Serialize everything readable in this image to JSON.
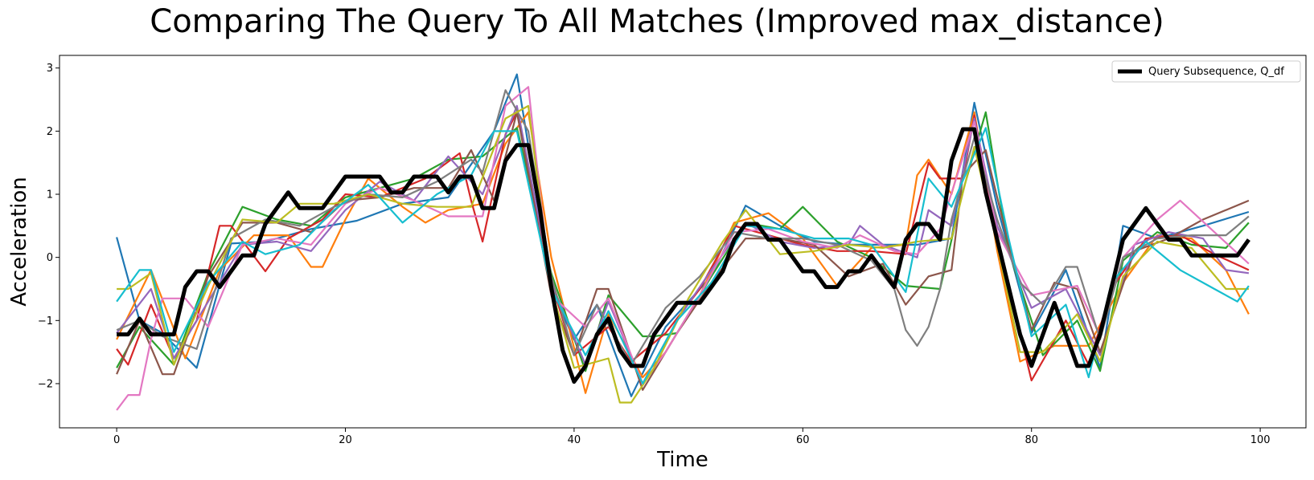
{
  "chart_data": {
    "type": "line",
    "title": "Comparing The Query To All Matches (Improved max_distance)",
    "xlabel": "Time",
    "ylabel": "Acceleration",
    "xlim": [
      -5,
      104
    ],
    "ylim": [
      -2.7,
      3.2
    ],
    "xticks": [
      0,
      20,
      40,
      60,
      80,
      100
    ],
    "yticks": [
      -2,
      -1,
      0,
      1,
      2,
      3
    ],
    "xtick_labels": [
      "0",
      "20",
      "40",
      "60",
      "80",
      "100"
    ],
    "ytick_labels": [
      "−2",
      "−1",
      "0",
      "1",
      "2",
      "3"
    ],
    "grid": false,
    "legend": {
      "position": "top-right",
      "entries": [
        {
          "label": "Query Subsequence, Q_df",
          "color": "#000000"
        }
      ]
    },
    "query": {
      "name": "Query Subsequence, Q_df",
      "color": "#000000",
      "x": [
        0,
        1,
        2,
        3,
        4,
        5,
        6,
        7,
        8,
        9,
        10,
        11,
        12,
        13,
        14,
        15,
        16,
        17,
        18,
        19,
        20,
        21,
        22,
        23,
        24,
        25,
        26,
        27,
        28,
        29,
        30,
        31,
        32,
        33,
        34,
        35,
        36,
        37,
        38,
        39,
        40,
        41,
        42,
        43,
        44,
        45,
        46,
        47,
        48,
        49,
        50,
        51,
        52,
        53,
        54,
        55,
        56,
        57,
        58,
        59,
        60,
        61,
        62,
        63,
        64,
        65,
        66,
        67,
        68,
        69,
        70,
        71,
        72,
        73,
        74,
        75,
        76,
        77,
        78,
        79,
        80,
        81,
        82,
        83,
        84,
        85,
        86,
        87,
        88,
        89,
        90,
        91,
        92,
        93,
        94,
        95,
        96,
        97,
        98,
        99
      ],
      "y": [
        -1.22,
        -1.22,
        -0.97,
        -1.22,
        -1.22,
        -1.22,
        -0.47,
        -0.22,
        -0.22,
        -0.47,
        -0.22,
        0.03,
        0.03,
        0.53,
        0.78,
        1.03,
        0.78,
        0.78,
        0.78,
        1.03,
        1.28,
        1.28,
        1.28,
        1.28,
        1.03,
        1.03,
        1.28,
        1.28,
        1.28,
        1.03,
        1.28,
        1.28,
        0.78,
        0.78,
        1.53,
        1.78,
        1.78,
        0.78,
        -0.47,
        -1.47,
        -1.97,
        -1.72,
        -1.22,
        -0.97,
        -1.47,
        -1.72,
        -1.72,
        -1.22,
        -0.97,
        -0.72,
        -0.72,
        -0.72,
        -0.47,
        -0.22,
        0.28,
        0.53,
        0.53,
        0.28,
        0.28,
        0.03,
        -0.22,
        -0.22,
        -0.47,
        -0.47,
        -0.22,
        -0.22,
        0.03,
        -0.22,
        -0.47,
        0.28,
        0.53,
        0.53,
        0.28,
        1.53,
        2.03,
        2.03,
        1.03,
        0.28,
        -0.47,
        -1.22,
        -1.72,
        -1.22,
        -0.72,
        -1.22,
        -1.72,
        -1.72,
        -1.22,
        -0.47,
        0.28,
        0.53,
        0.78,
        0.53,
        0.28,
        0.28,
        0.03,
        0.03,
        0.03,
        0.03,
        0.03,
        0.28
      ]
    },
    "series": [
      {
        "color": "#1f77b4",
        "x": [
          0,
          2,
          4,
          7,
          10,
          13,
          17,
          21,
          25,
          29,
          33,
          35,
          38,
          40,
          42,
          45,
          48,
          52,
          55,
          58,
          61,
          64,
          67,
          70,
          73,
          75,
          77,
          80,
          83,
          86,
          88,
          91,
          95,
          99
        ],
        "y": [
          0.32,
          -1.0,
          -1.2,
          -1.75,
          0.22,
          0.25,
          0.45,
          0.58,
          0.85,
          0.95,
          2.0,
          2.9,
          -0.5,
          -1.3,
          -0.75,
          -2.2,
          -1.1,
          -0.3,
          0.82,
          0.5,
          0.25,
          0.2,
          0.2,
          0.2,
          0.3,
          2.45,
          0.8,
          -1.2,
          -0.2,
          -1.75,
          0.5,
          0.3,
          0.5,
          0.72
        ]
      },
      {
        "color": "#ff7f0e",
        "x": [
          0,
          3,
          6,
          9,
          12,
          15,
          17,
          18,
          20,
          22,
          25,
          27,
          29,
          32,
          34,
          36,
          38,
          41,
          43,
          46,
          48,
          51,
          54,
          57,
          60,
          63,
          66,
          69,
          70,
          71,
          73,
          75,
          77,
          79,
          82,
          85,
          88,
          91,
          94,
          97,
          99
        ],
        "y": [
          -1.3,
          -0.2,
          -1.6,
          -0.2,
          0.35,
          0.35,
          -0.15,
          -0.15,
          0.6,
          1.25,
          0.8,
          0.55,
          0.75,
          0.85,
          1.8,
          2.3,
          0.0,
          -2.15,
          -0.9,
          -1.9,
          -1.5,
          -0.6,
          0.55,
          0.7,
          0.3,
          -0.45,
          0.15,
          0.2,
          1.3,
          1.55,
          1.0,
          2.3,
          0.1,
          -1.65,
          -1.4,
          -1.4,
          -0.4,
          0.35,
          0.3,
          -0.2,
          -0.9
        ]
      },
      {
        "color": "#2ca02c",
        "x": [
          0,
          2,
          5,
          8,
          11,
          14,
          17,
          20,
          23,
          26,
          29,
          32,
          35,
          38,
          41,
          43,
          46,
          47,
          49,
          52,
          55,
          58,
          60,
          63,
          66,
          69,
          72,
          74,
          76,
          78,
          81,
          84,
          86,
          88,
          91,
          94,
          97,
          99
        ],
        "y": [
          -1.75,
          -1.1,
          -1.7,
          -0.25,
          0.8,
          0.6,
          0.5,
          0.95,
          1.1,
          1.25,
          1.55,
          1.6,
          2.05,
          -0.25,
          -1.8,
          -0.6,
          -1.25,
          -1.25,
          -1.2,
          -0.3,
          0.55,
          0.45,
          0.8,
          0.25,
          0.0,
          -0.45,
          -0.5,
          1.05,
          2.3,
          0.1,
          -1.55,
          -1.0,
          -1.8,
          -0.05,
          0.4,
          0.2,
          0.15,
          0.55
        ]
      },
      {
        "color": "#d62728",
        "x": [
          0,
          1,
          3,
          5,
          7,
          9,
          10,
          13,
          15,
          18,
          20,
          23,
          27,
          30,
          31,
          32,
          34,
          35,
          38,
          40,
          43,
          45,
          48,
          51,
          54,
          57,
          60,
          63,
          66,
          69,
          71,
          72,
          74,
          75,
          77,
          79,
          80,
          83,
          85,
          87,
          90,
          93,
          96,
          99
        ],
        "y": [
          -1.45,
          -1.7,
          -0.75,
          -1.6,
          -1.0,
          0.5,
          0.5,
          -0.22,
          0.3,
          0.6,
          1.0,
          0.95,
          1.25,
          1.65,
          0.9,
          0.25,
          1.95,
          2.3,
          -0.4,
          -1.55,
          -1.1,
          -1.65,
          -1.2,
          -0.5,
          0.5,
          0.35,
          0.2,
          0.1,
          0.1,
          0.05,
          1.5,
          1.25,
          1.25,
          2.25,
          0.3,
          -1.2,
          -1.95,
          -1.0,
          -1.7,
          -0.5,
          0.3,
          0.35,
          0.05,
          -0.2
        ]
      },
      {
        "color": "#9467bd",
        "x": [
          0,
          3,
          5,
          8,
          11,
          14,
          17,
          20,
          23,
          26,
          29,
          32,
          35,
          38,
          41,
          43,
          46,
          49,
          52,
          55,
          58,
          61,
          64,
          65,
          67,
          70,
          71,
          73,
          75,
          77,
          80,
          83,
          86,
          89,
          92,
          95,
          97,
          99
        ],
        "y": [
          -1.2,
          -0.5,
          -1.6,
          -0.7,
          0.2,
          0.25,
          0.1,
          0.75,
          1.2,
          0.9,
          1.6,
          1.0,
          2.4,
          -0.4,
          -1.7,
          -0.7,
          -2.0,
          -1.0,
          -0.2,
          0.55,
          0.25,
          0.15,
          0.2,
          0.5,
          0.2,
          0.0,
          0.75,
          0.5,
          2.2,
          0.5,
          -0.8,
          -0.5,
          -1.55,
          0.2,
          0.4,
          0.3,
          -0.2,
          -0.25
        ]
      },
      {
        "color": "#8c564b",
        "x": [
          0,
          2,
          4,
          5,
          8,
          11,
          14,
          17,
          20,
          23,
          26,
          29,
          31,
          33,
          35,
          38,
          40,
          42,
          43,
          46,
          49,
          52,
          55,
          58,
          61,
          64,
          67,
          69,
          71,
          73,
          74,
          76,
          78,
          80,
          82,
          84,
          86,
          89,
          92,
          95,
          99
        ],
        "y": [
          -1.85,
          -1.0,
          -1.85,
          -1.85,
          -0.3,
          0.55,
          0.55,
          0.4,
          0.9,
          0.95,
          1.1,
          1.1,
          1.7,
          0.9,
          2.3,
          -0.6,
          -1.55,
          -0.5,
          -0.5,
          -2.1,
          -1.2,
          -0.4,
          0.3,
          0.3,
          0.2,
          -0.3,
          -0.1,
          -0.75,
          -0.3,
          -0.2,
          1.3,
          1.7,
          0.2,
          -1.15,
          -0.4,
          -0.5,
          -1.5,
          0.1,
          0.3,
          0.6,
          0.9
        ]
      },
      {
        "color": "#e377c2",
        "x": [
          0,
          1,
          2,
          3,
          4,
          6,
          8,
          11,
          14,
          17,
          20,
          23,
          26,
          29,
          32,
          34,
          36,
          38,
          41,
          43,
          46,
          48,
          51,
          54,
          57,
          60,
          63,
          65,
          68,
          70,
          72,
          75,
          77,
          80,
          84,
          86,
          88,
          91,
          93,
          96,
          99
        ],
        "y": [
          -2.42,
          -2.18,
          -2.18,
          -1.3,
          -0.65,
          -0.65,
          -1.1,
          0.2,
          0.3,
          0.2,
          0.85,
          1.1,
          0.9,
          0.65,
          0.65,
          2.4,
          2.7,
          -0.6,
          -1.1,
          -0.65,
          -2.0,
          -1.5,
          -0.6,
          0.4,
          0.45,
          0.25,
          0.15,
          0.35,
          0.1,
          0.05,
          0.45,
          2.15,
          0.4,
          -0.6,
          -0.45,
          -1.25,
          0.0,
          0.6,
          0.9,
          0.4,
          -0.1
        ]
      },
      {
        "color": "#7f7f7f",
        "x": [
          0,
          2,
          4,
          7,
          10,
          13,
          16,
          19,
          22,
          25,
          28,
          31,
          32,
          34,
          36,
          38,
          40,
          42,
          45,
          48,
          51,
          54,
          57,
          60,
          63,
          66,
          68,
          69,
          70,
          71,
          72,
          73,
          75,
          77,
          79,
          81,
          83,
          84,
          86,
          88,
          91,
          94,
          97,
          99
        ],
        "y": [
          -1.15,
          -1.0,
          -1.25,
          -1.45,
          0.3,
          0.6,
          0.5,
          0.8,
          1.0,
          0.95,
          1.2,
          1.55,
          1.35,
          2.65,
          2.0,
          -0.3,
          -1.55,
          -0.75,
          -1.7,
          -0.8,
          -0.3,
          0.4,
          0.3,
          0.3,
          0.2,
          -0.05,
          -0.5,
          -1.15,
          -1.4,
          -1.1,
          -0.5,
          0.6,
          1.9,
          0.6,
          -0.4,
          -0.75,
          -0.15,
          -0.15,
          -1.3,
          0.0,
          0.3,
          0.35,
          0.35,
          0.65
        ]
      },
      {
        "color": "#bcbd22",
        "x": [
          0,
          1,
          3,
          5,
          8,
          11,
          14,
          16,
          19,
          22,
          25,
          28,
          31,
          34,
          36,
          38,
          40,
          43,
          44,
          45,
          47,
          50,
          53,
          55,
          58,
          61,
          64,
          67,
          70,
          73,
          75,
          77,
          79,
          81,
          84,
          86,
          88,
          91,
          94,
          97,
          99
        ],
        "y": [
          -0.5,
          -0.5,
          -0.25,
          -1.7,
          -0.45,
          0.6,
          0.55,
          0.85,
          0.85,
          1.0,
          0.85,
          0.8,
          0.8,
          2.2,
          2.4,
          -0.5,
          -1.75,
          -1.6,
          -2.3,
          -2.3,
          -1.75,
          -0.65,
          0.25,
          0.75,
          0.05,
          0.1,
          0.2,
          0.15,
          0.25,
          0.3,
          1.75,
          0.2,
          -1.5,
          -1.5,
          -0.9,
          -1.65,
          -0.3,
          0.25,
          0.15,
          -0.5,
          -0.5
        ]
      },
      {
        "color": "#17becf",
        "x": [
          0,
          2,
          3,
          5,
          8,
          11,
          13,
          16,
          19,
          22,
          25,
          28,
          31,
          33,
          35,
          38,
          41,
          43,
          46,
          49,
          52,
          55,
          58,
          61,
          64,
          66,
          69,
          71,
          73,
          76,
          78,
          80,
          83,
          85,
          87,
          90,
          93,
          96,
          98,
          99
        ],
        "y": [
          -0.7,
          -0.2,
          -0.2,
          -1.5,
          -0.4,
          0.25,
          0.05,
          0.2,
          0.75,
          1.15,
          0.55,
          1.0,
          1.3,
          2.0,
          2.0,
          -0.5,
          -1.55,
          -0.85,
          -2.0,
          -1.0,
          -0.4,
          0.5,
          0.45,
          0.3,
          0.3,
          0.2,
          -0.55,
          1.25,
          0.8,
          2.05,
          0.3,
          -1.25,
          -0.75,
          -1.9,
          -0.4,
          0.25,
          -0.2,
          -0.5,
          -0.7,
          -0.45
        ]
      }
    ]
  }
}
